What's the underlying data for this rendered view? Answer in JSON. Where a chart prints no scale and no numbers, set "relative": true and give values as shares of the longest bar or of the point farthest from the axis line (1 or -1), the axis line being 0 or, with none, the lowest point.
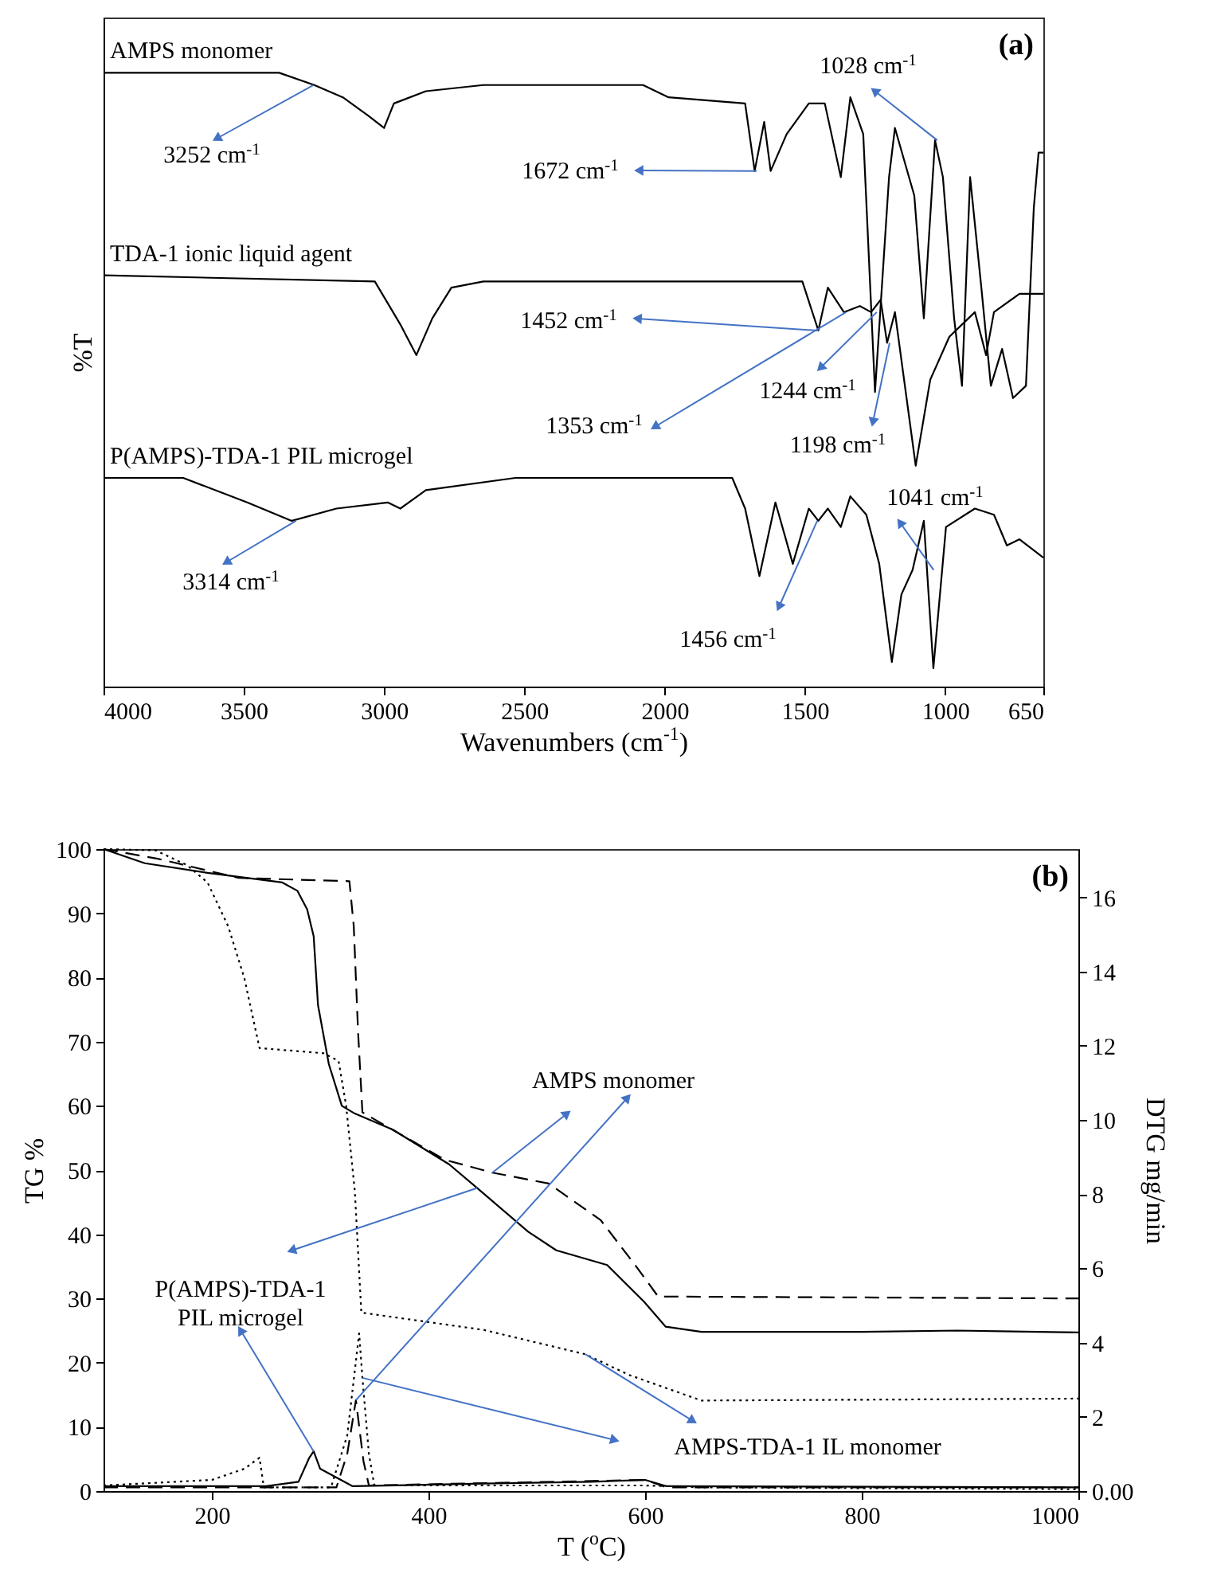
{
  "chart_data": [
    {
      "type": "line",
      "xlabel": "Wavenumbers (cm$^{-1}$)",
      "ylabel": "%T",
      "relative": true,
      "tick_labels": "x",
      "line_style": "solid",
      "xlim": [
        4000,
        650
      ],
      "xticks": [
        4000,
        3500,
        3000,
        2500,
        2000,
        1500,
        1000,
        650
      ],
      "series": [
        {
          "name": "AMPS monomer",
          "color": "#000000",
          "x": [
            4000,
            3374,
            3249,
            3147,
            3056,
            3000,
            2965,
            2851,
            2646,
            2077,
            1986,
            1713,
            1679,
            1645,
            1622,
            1565,
            1486,
            1429,
            1372,
            1338,
            1292,
            1250,
            1200,
            1179,
            1110,
            1076,
            1036,
            1008,
            968,
            940,
            911,
            871,
            837,
            797,
            758,
            712,
            684,
            667,
            650
          ],
          "values": [
            1.0,
            1.0,
            0.98,
            0.96,
            0.93,
            0.91,
            0.95,
            0.97,
            0.98,
            0.98,
            0.96,
            0.95,
            0.84,
            0.92,
            0.84,
            0.9,
            0.95,
            0.95,
            0.83,
            0.96,
            0.9,
            0.48,
            0.83,
            0.91,
            0.8,
            0.6,
            0.89,
            0.83,
            0.6,
            0.49,
            0.83,
            0.65,
            0.49,
            0.55,
            0.47,
            0.49,
            0.78,
            0.87,
            0.87
          ]
        },
        {
          "name": "TDA-1 ionic liquid agent",
          "color": "#000000",
          "x": [
            4000,
            3033,
            2942,
            2885,
            2828,
            2760,
            2646,
            1622,
            1509,
            1452,
            1418,
            1361,
            1304,
            1264,
            1230,
            1207,
            1179,
            1105,
            1053,
            985,
            894,
            854,
            826,
            735,
            650
          ],
          "values": [
            0.67,
            0.66,
            0.59,
            0.54,
            0.6,
            0.65,
            0.66,
            0.66,
            0.66,
            0.58,
            0.65,
            0.61,
            0.62,
            0.61,
            0.63,
            0.56,
            0.61,
            0.36,
            0.5,
            0.57,
            0.61,
            0.54,
            0.61,
            0.64,
            0.64
          ]
        },
        {
          "name": "P(AMPS)-TDA-1 PIL microgel",
          "color": "#000000",
          "x": [
            4000,
            3716,
            3488,
            3329,
            3170,
            2987,
            2942,
            2851,
            2532,
            1759,
            1713,
            1662,
            1605,
            1543,
            1486,
            1452,
            1418,
            1372,
            1338,
            1281,
            1235,
            1190,
            1156,
            1116,
            1076,
            1042,
            997,
            894,
            826,
            780,
            735,
            650
          ],
          "values": [
            0.34,
            0.34,
            0.3,
            0.27,
            0.29,
            0.3,
            0.29,
            0.32,
            0.34,
            0.34,
            0.29,
            0.18,
            0.3,
            0.2,
            0.29,
            0.27,
            0.29,
            0.26,
            0.31,
            0.28,
            0.2,
            0.04,
            0.15,
            0.19,
            0.27,
            0.03,
            0.26,
            0.29,
            0.28,
            0.23,
            0.24,
            0.21
          ]
        }
      ],
      "annotations": [
        "(a)",
        {
          "text": "3252 cm$^{-1}$",
          "x": 3252,
          "y": 0.98
        },
        {
          "text": "1672 cm$^{-1}$",
          "x": 1672,
          "y": 0.84
        },
        {
          "text": "1028 cm$^{-1}$",
          "x": 1028,
          "y": 0.89
        },
        {
          "text": "1452 cm$^{-1}$",
          "x": 1452,
          "y": 0.58
        },
        {
          "text": "1353 cm$^{-1}$",
          "x": 1353,
          "y": 0.61
        },
        {
          "text": "1244 cm$^{-1}$",
          "x": 1244,
          "y": 0.61
        },
        {
          "text": "1198 cm$^{-1}$",
          "x": 1198,
          "y": 0.56
        },
        {
          "text": "3314 cm$^{-1}$",
          "x": 3314,
          "y": 0.27
        },
        {
          "text": "1456 cm$^{-1}$",
          "x": 1456,
          "y": 0.27
        },
        {
          "text": "1041 cm$^{-1}$",
          "x": 1041,
          "y": 0.19
        }
      ]
    },
    {
      "type": "line",
      "xlabel": "T ($^{o}$C)",
      "ylabel": "TG %",
      "y2label": "DTG mg/min",
      "xlim": [
        100,
        1000
      ],
      "xticks": [
        200,
        400,
        600,
        800,
        1000
      ],
      "ylim": [
        0,
        100
      ],
      "yticks": [
        0,
        10,
        20,
        30,
        40,
        50,
        60,
        70,
        80,
        90,
        100
      ],
      "y2lim": [
        0,
        17.3
      ],
      "y2ticks": [
        {
          "value": 0,
          "label": "0.00"
        },
        2,
        4,
        6,
        8,
        10,
        12,
        14,
        16
      ],
      "series": [
        {
          "color": "#000000",
          "line_style": "solid",
          "x": [
            100,
            138,
            196,
            265,
            279,
            288,
            294,
            298,
            308,
            320,
            332,
            367,
            419,
            445,
            492,
            518,
            565,
            599,
            619,
            652,
            800,
            888,
            1000
          ],
          "values": [
            100,
            97.8,
            96.3,
            94.8,
            93.5,
            90.6,
            86.4,
            75.7,
            66.5,
            60,
            58.8,
            56.3,
            50.9,
            47.2,
            40.4,
            37.5,
            35.2,
            29.5,
            25.6,
            24.8,
            24.8,
            25,
            24.7
          ]
        },
        {
          "color": "#000000",
          "line_style": "dashed",
          "x": [
            100,
            150,
            225,
            327,
            331,
            335,
            339,
            346,
            415,
            459,
            511,
            559,
            593,
            612,
            1000
          ],
          "values": [
            100,
            98.5,
            95.5,
            95,
            88,
            71.5,
            59,
            58.3,
            51.6,
            49.6,
            47.9,
            42.2,
            34.7,
            30.3,
            30
          ]
        },
        {
          "color": "#000000",
          "line_style": "dotted",
          "x": [
            100,
            148,
            177,
            196,
            215,
            230,
            244,
            303,
            317,
            324,
            332,
            338,
            451,
            545,
            585,
            652,
            1000
          ],
          "values": [
            100,
            99.8,
            97.5,
            94.8,
            88,
            79.9,
            69,
            68.2,
            67,
            60,
            46.7,
            27.8,
            25.1,
            21.3,
            18.1,
            14.1,
            14.4
          ]
        },
        {
          "color": "#000000",
          "line_style": "solid",
          "axis": "y2",
          "x": [
            100,
            250,
            280,
            290,
            294,
            300,
            330,
            450,
            550,
            600,
            620,
            1000
          ],
          "values": [
            0.13,
            0.13,
            0.25,
            0.9,
            1.07,
            0.6,
            0.13,
            0.2,
            0.25,
            0.3,
            0.13,
            0.1
          ]
        },
        {
          "color": "#000000",
          "line_style": "dashed",
          "axis": "y2",
          "x": [
            100,
            315,
            325,
            333,
            340,
            345,
            600,
            620,
            1000
          ],
          "values": [
            0.1,
            0.1,
            1.0,
            2.45,
            0.8,
            0.15,
            0.3,
            0.1,
            0.1
          ]
        },
        {
          "color": "#000000",
          "line_style": "dotted",
          "axis": "y2",
          "x": [
            100,
            200,
            230,
            244,
            248,
            310,
            325,
            336,
            339,
            345,
            350,
            600,
            650,
            1000
          ],
          "values": [
            0.15,
            0.3,
            0.6,
            0.9,
            0.1,
            0.1,
            1.5,
            4.25,
            3.05,
            1.0,
            0.15,
            0.15,
            0.1,
            0.05
          ]
        }
      ],
      "annotations": [
        "(b)",
        {
          "text": "P(AMPS)-TDA-1 PIL microgel",
          "x": 445,
          "y": 47.2
        },
        {
          "text": "AMPS monomer",
          "x": 459,
          "y": 49.6
        },
        {
          "text": "AMPS-TDA-1 IL monomer",
          "x": 545,
          "y": 21.3
        }
      ]
    }
  ]
}
